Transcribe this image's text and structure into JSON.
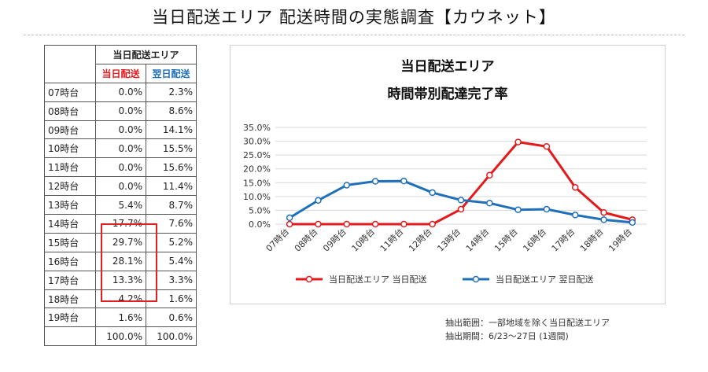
{
  "page": {
    "title": "当日配送エリア 配送時間の実態調査【カウネット】"
  },
  "table": {
    "group_header": "当日配送エリア",
    "col_same_day": "当日配送",
    "col_next_day": "翌日配送",
    "rows": [
      {
        "hour": "07時台",
        "same": "0.0%",
        "next": "2.3%"
      },
      {
        "hour": "08時台",
        "same": "0.0%",
        "next": "8.6%"
      },
      {
        "hour": "09時台",
        "same": "0.0%",
        "next": "14.1%"
      },
      {
        "hour": "10時台",
        "same": "0.0%",
        "next": "15.5%"
      },
      {
        "hour": "11時台",
        "same": "0.0%",
        "next": "15.6%"
      },
      {
        "hour": "12時台",
        "same": "0.0%",
        "next": "11.4%"
      },
      {
        "hour": "13時台",
        "same": "5.4%",
        "next": "8.7%"
      },
      {
        "hour": "14時台",
        "same": "17.7%",
        "next": "7.6%"
      },
      {
        "hour": "15時台",
        "same": "29.7%",
        "next": "5.2%"
      },
      {
        "hour": "16時台",
        "same": "28.1%",
        "next": "5.4%"
      },
      {
        "hour": "17時台",
        "same": "13.3%",
        "next": "3.3%"
      },
      {
        "hour": "18時台",
        "same": "4.2%",
        "next": "1.6%"
      },
      {
        "hour": "19時台",
        "same": "1.6%",
        "next": "0.6%"
      }
    ],
    "total_same": "100.0%",
    "total_next": "100.0%"
  },
  "notes": {
    "line1": "抽出範囲：一部地域を除く当日配送エリア",
    "line2": "抽出期間：6/23〜27日 (1週間)"
  },
  "colors": {
    "same_day": "#e31a1c",
    "next_day": "#1f6fba",
    "grid": "#d9d9d9",
    "highlight": "#e32020"
  },
  "chart_data": {
    "type": "line",
    "title": "当日配送エリア",
    "subtitle": "時間帯別配達完了率",
    "categories": [
      "07時台",
      "08時台",
      "09時台",
      "10時台",
      "11時台",
      "12時台",
      "13時台",
      "14時台",
      "15時台",
      "16時台",
      "17時台",
      "18時台",
      "19時台"
    ],
    "series": [
      {
        "name": "当日配送エリア 当日配送",
        "values": [
          0.0,
          0.0,
          0.0,
          0.0,
          0.0,
          0.0,
          5.4,
          17.7,
          29.7,
          28.1,
          13.3,
          4.2,
          1.6
        ],
        "color": "#e31a1c"
      },
      {
        "name": "当日配送エリア 翌日配送",
        "values": [
          2.3,
          8.6,
          14.1,
          15.5,
          15.6,
          11.4,
          8.7,
          7.6,
          5.2,
          5.4,
          3.3,
          1.6,
          0.6
        ],
        "color": "#1f6fba"
      }
    ],
    "y_ticks": [
      "0.0%",
      "5.0%",
      "10.0%",
      "15.0%",
      "20.0%",
      "25.0%",
      "30.0%",
      "35.0%"
    ],
    "ylim": [
      0,
      35
    ],
    "grid": true,
    "legend_position": "bottom"
  }
}
